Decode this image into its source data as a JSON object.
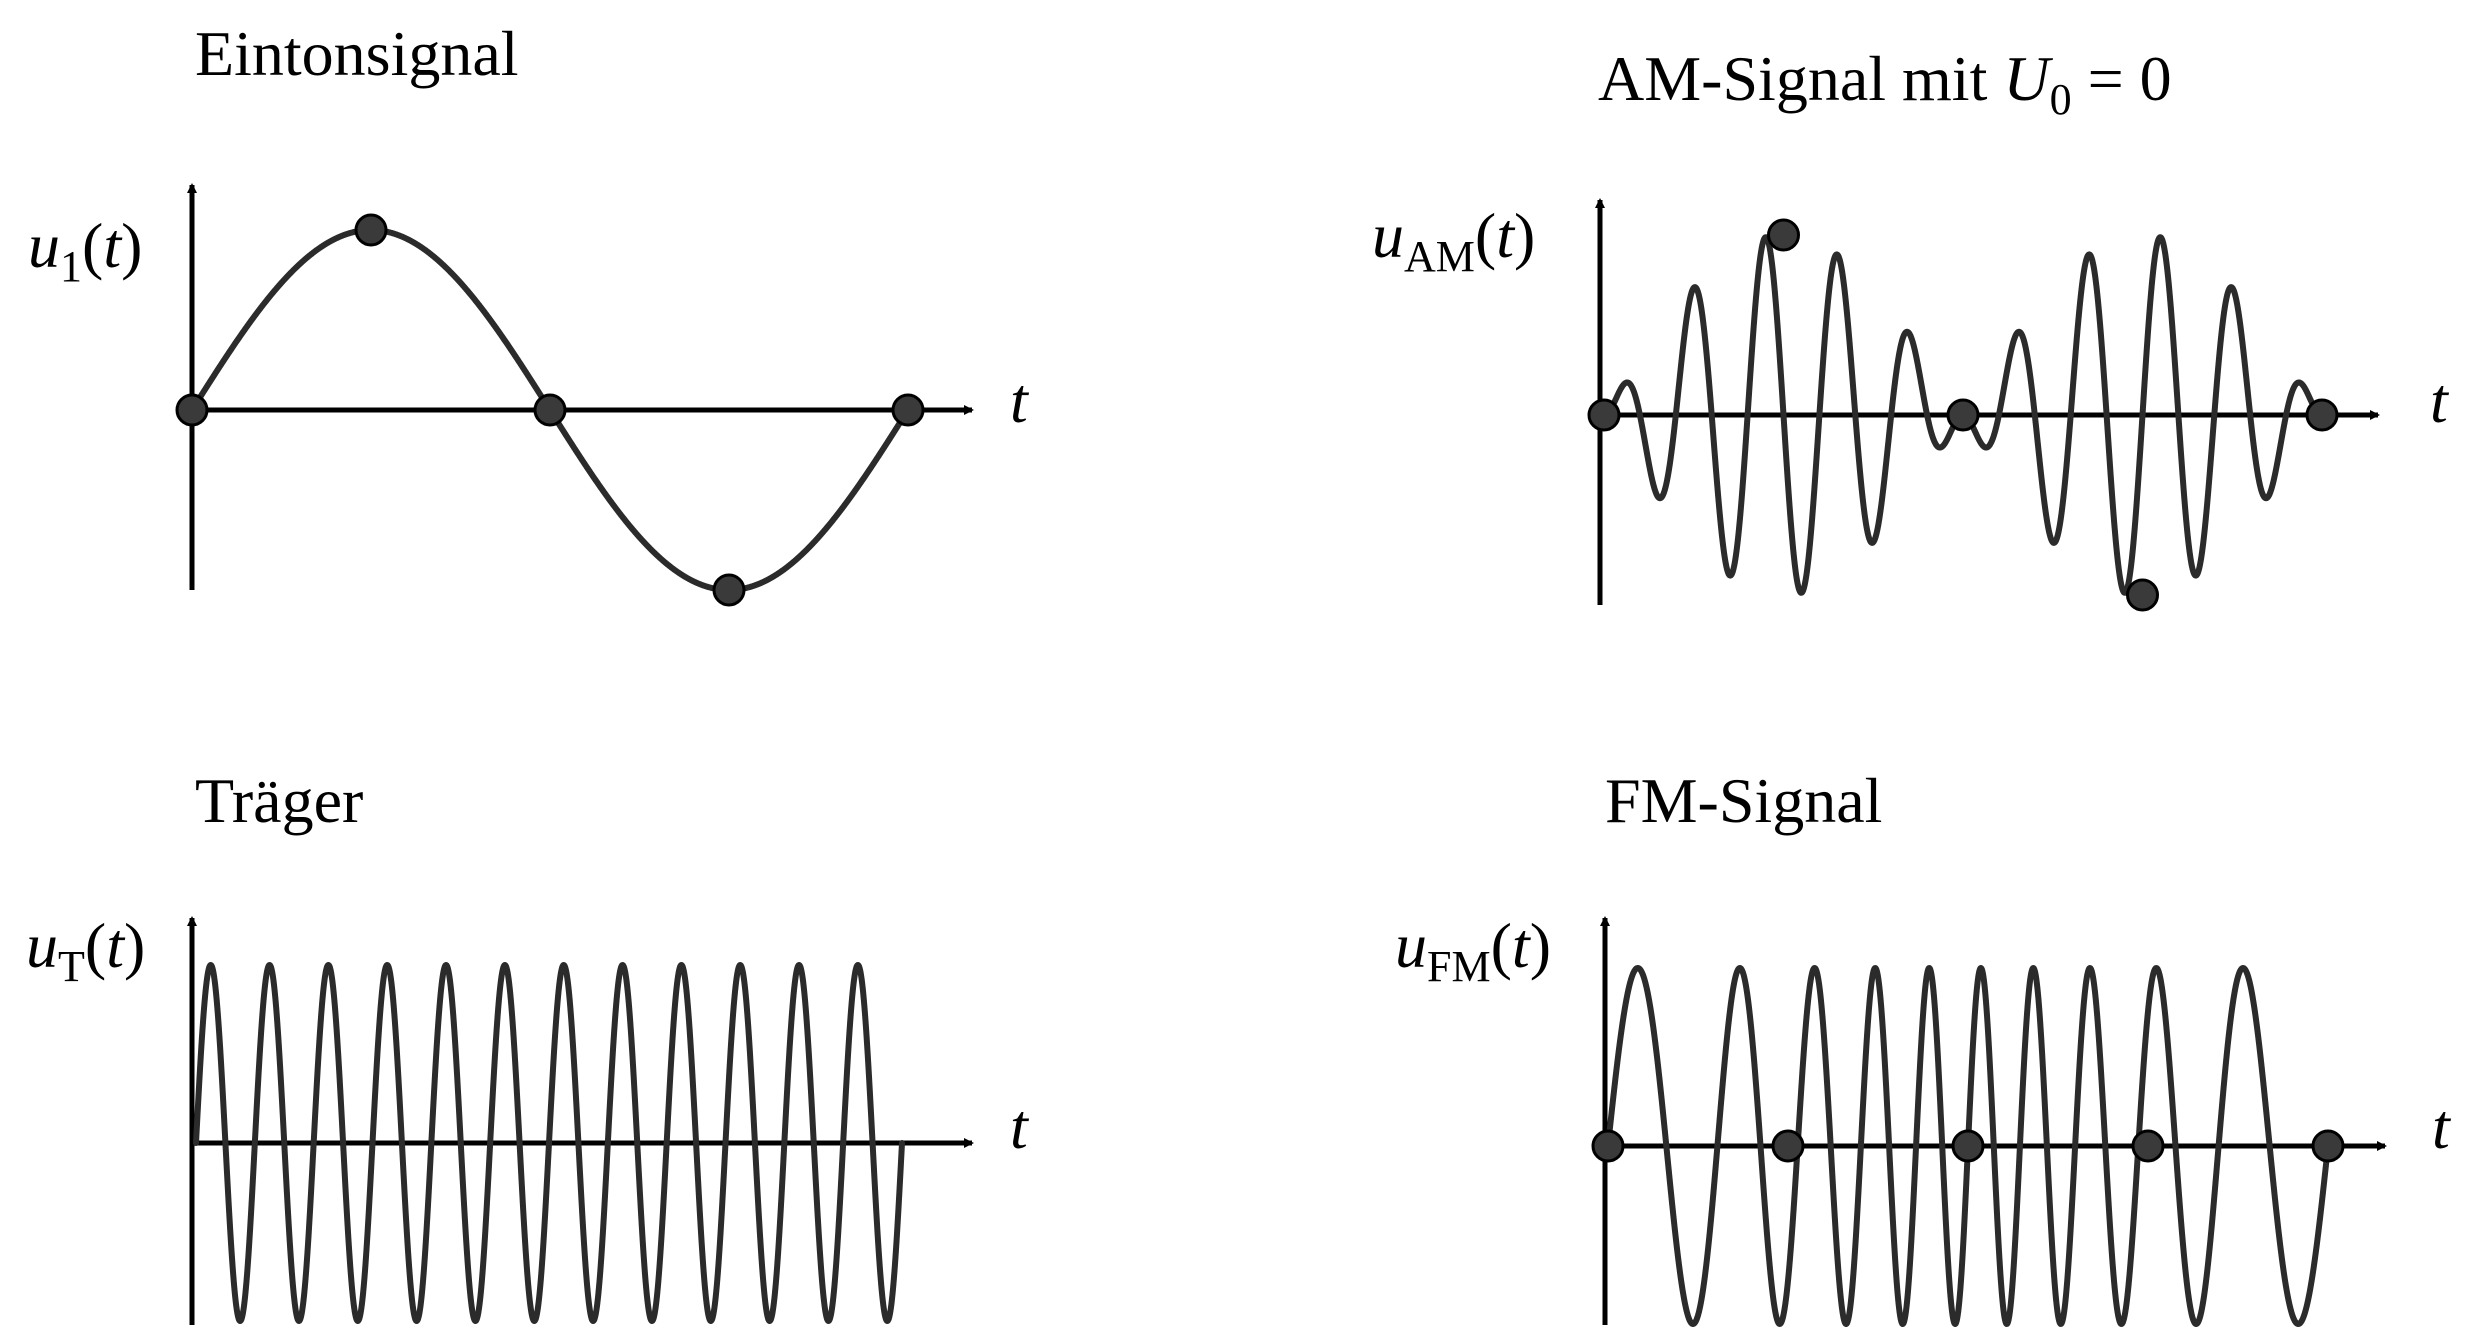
{
  "colors": {
    "curve": "#2b2b2b",
    "marker": "#3a3a3a",
    "axis": "#000000",
    "background": "#ffffff"
  },
  "panels": [
    {
      "key": "eintonsignal",
      "title": "Eintonsignal",
      "ylabel": {
        "var": "u",
        "sub": "1",
        "open": "(",
        "arg": "t",
        "close": ")"
      },
      "xlabel": "t",
      "signal": "tone",
      "x_range": [
        0,
        1
      ],
      "tone_periods": 1,
      "marker_points_t": [
        0,
        0.25,
        0.5,
        0.75,
        1
      ]
    },
    {
      "key": "am",
      "title_main": "AM-Signal mit ",
      "title_var": "U",
      "title_sub": "0",
      "title_tail": " = 0",
      "ylabel": {
        "var": "u",
        "sub": "AM",
        "open": "(",
        "arg": "t",
        "close": ")"
      },
      "xlabel": "t",
      "signal": "am_dsb",
      "x_range": [
        0,
        1
      ],
      "carrier_periods": 10,
      "tone_periods": 1,
      "marker_points_t": [
        0,
        0.25,
        0.5,
        0.75,
        1
      ]
    },
    {
      "key": "traeger",
      "title": "Träger",
      "ylabel": {
        "var": "u",
        "sub": "T",
        "open": "(",
        "arg": "t",
        "close": ")"
      },
      "xlabel": "t",
      "signal": "carrier",
      "x_range": [
        0,
        1
      ],
      "carrier_periods": 12,
      "marker_points_t": []
    },
    {
      "key": "fm",
      "title": "FM-Signal",
      "ylabel": {
        "var": "u",
        "sub": "FM",
        "open": "(",
        "arg": "t",
        "close": ")"
      },
      "xlabel": "t",
      "signal": "fm",
      "x_range": [
        0,
        1
      ],
      "carrier_periods": 10,
      "tone_periods": 1,
      "fm_index": 4,
      "marker_points_t": [
        0,
        0.25,
        0.5,
        0.75,
        1
      ]
    }
  ]
}
